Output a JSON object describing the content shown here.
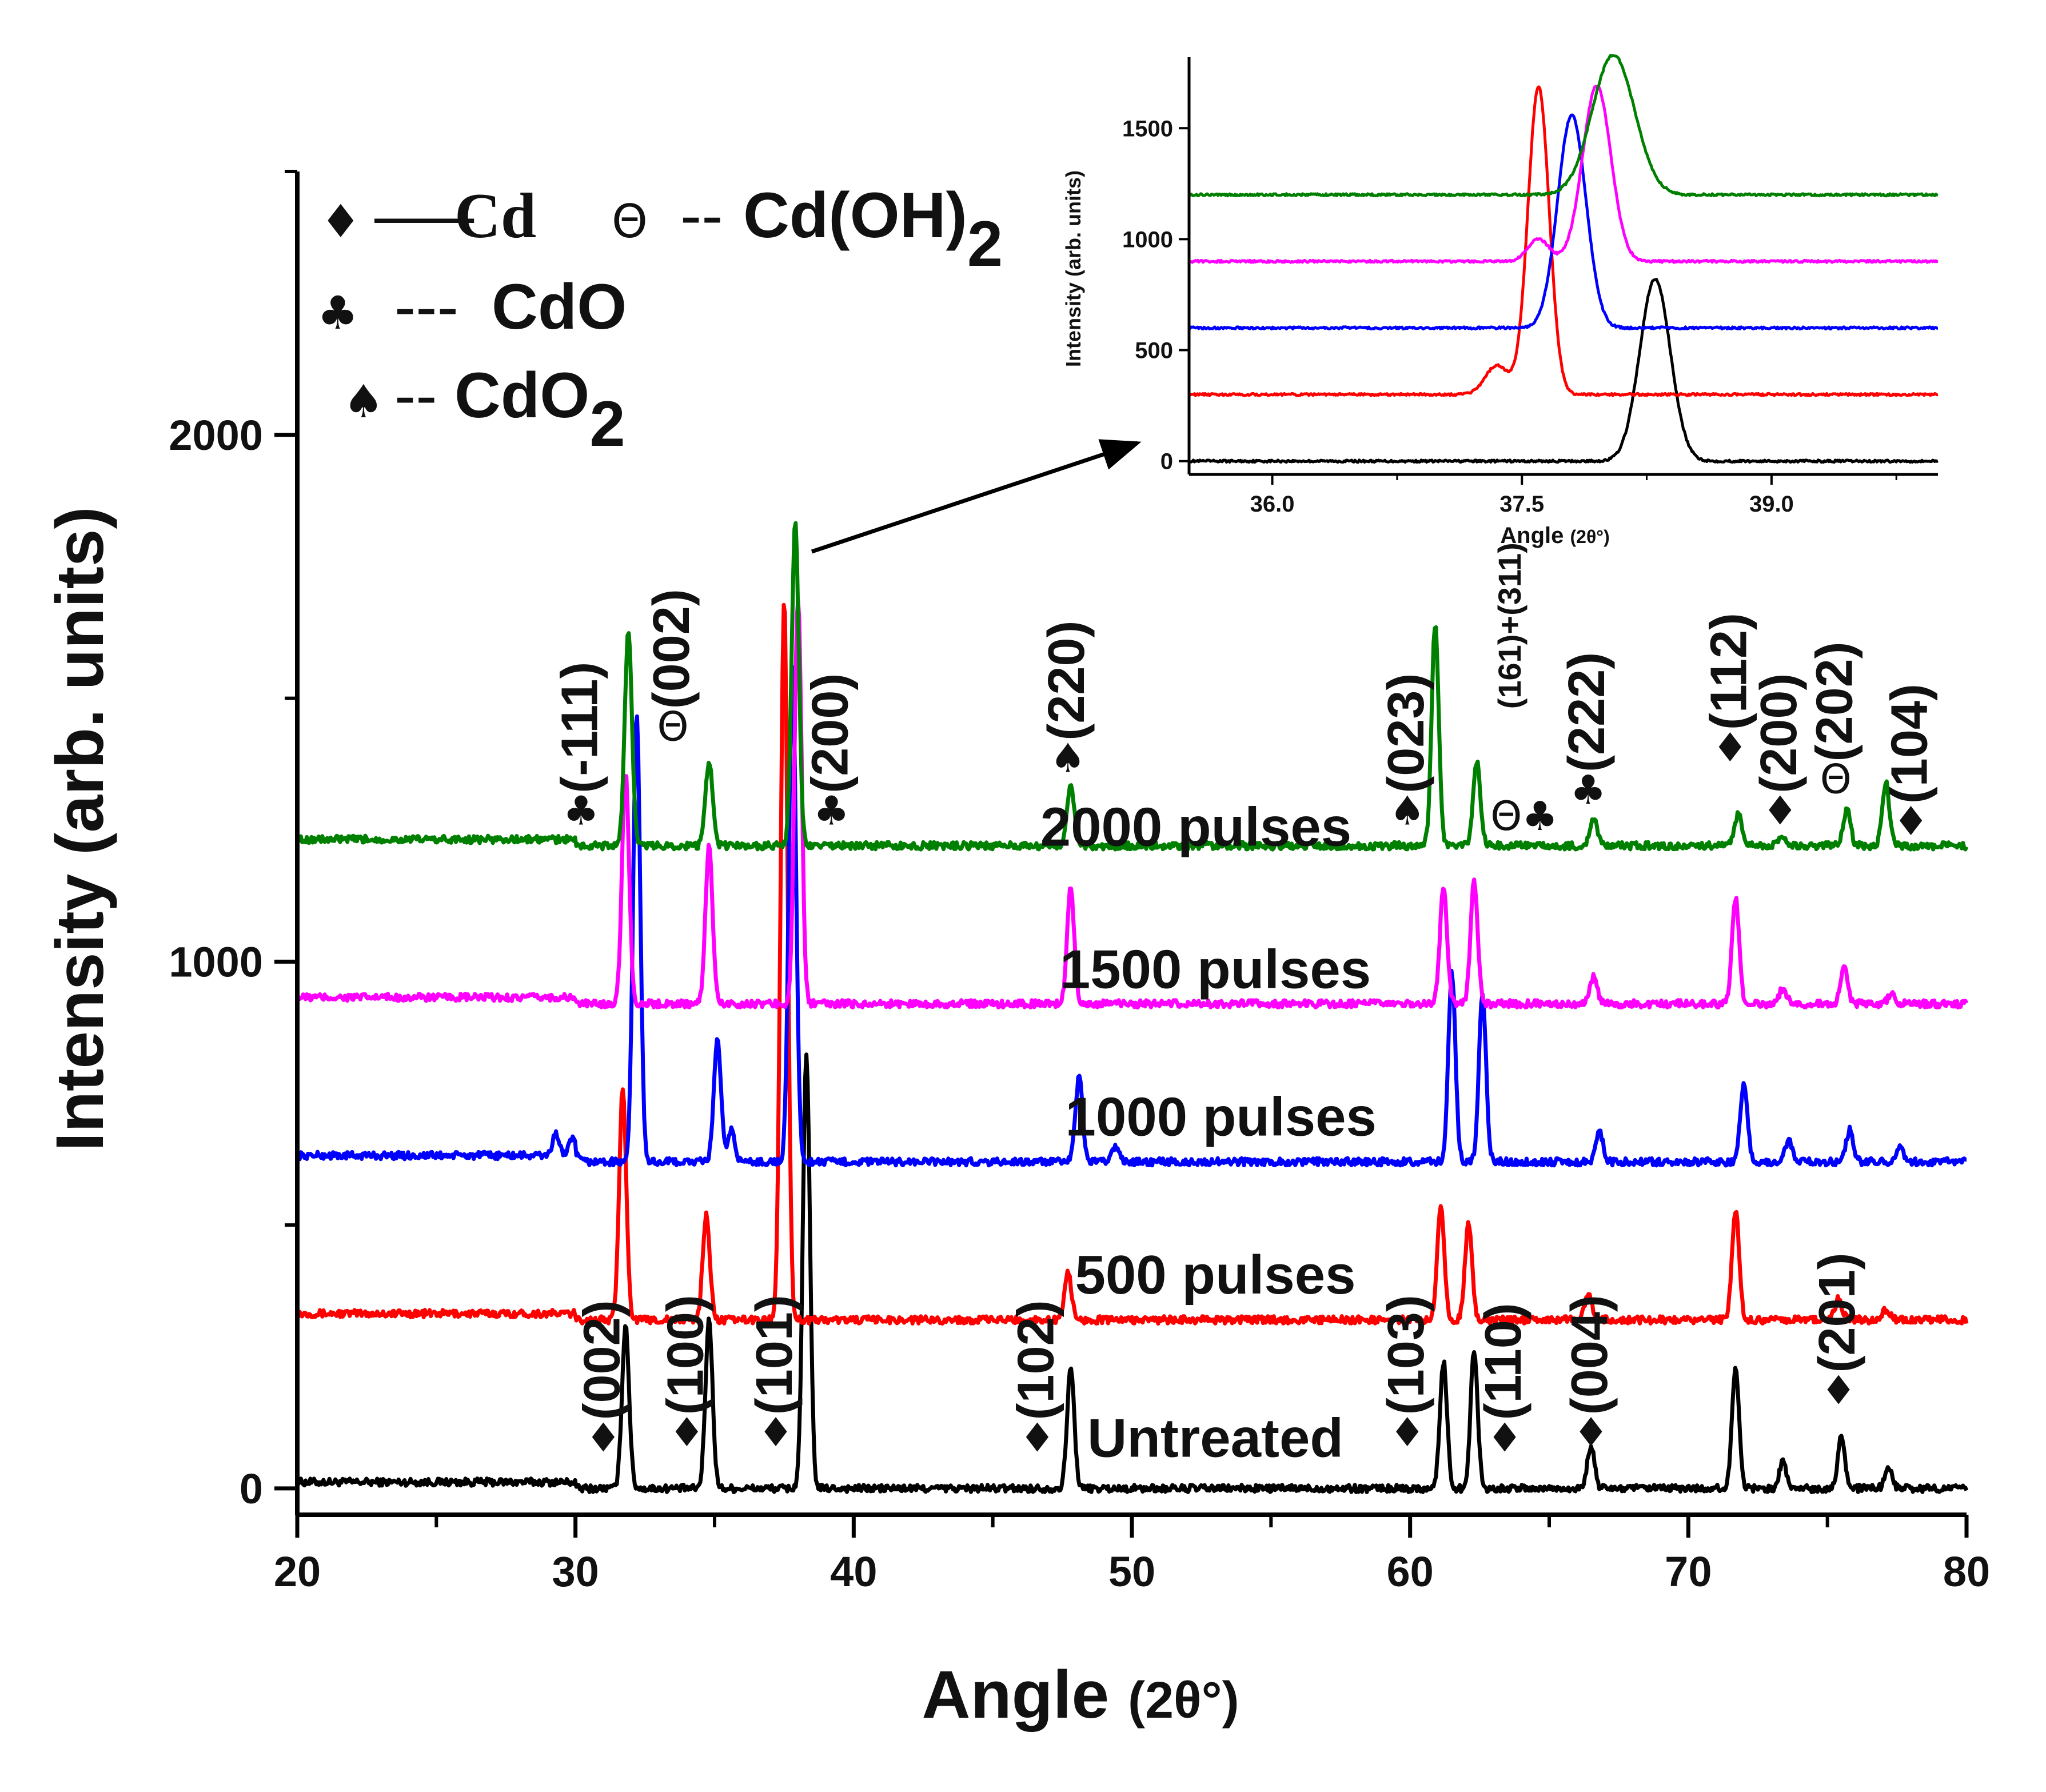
{
  "chart_data": [
    {
      "type": "line",
      "title": "",
      "xlabel": "Angle (2θ°)",
      "xlabel_main": "Angle",
      "xlabel_unit": "(2θ°)",
      "ylabel": "Intensity (arb. units)",
      "xlim": [
        20,
        80
      ],
      "ylim": [
        -50,
        2500
      ],
      "xticks": [
        20,
        30,
        40,
        50,
        60,
        70,
        80
      ],
      "yticks": [
        0,
        1000,
        2000
      ],
      "series": [
        {
          "name": "Untreated",
          "label": "Untreated",
          "color": "#000000",
          "baseline": 0,
          "peaks": [
            [
              31.8,
              310
            ],
            [
              34.8,
              320
            ],
            [
              38.3,
              820
            ],
            [
              47.8,
              230
            ],
            [
              61.2,
              240
            ],
            [
              62.3,
              260
            ],
            [
              66.5,
              80
            ],
            [
              71.7,
              230
            ],
            [
              73.4,
              50
            ],
            [
              75.5,
              100
            ],
            [
              77.2,
              40
            ]
          ]
        },
        {
          "name": "500 pulses",
          "label": "500 pulses",
          "color": "#ff0000",
          "baseline": 320,
          "peaks": [
            [
              31.7,
              760
            ],
            [
              34.7,
              520
            ],
            [
              37.5,
              1690
            ],
            [
              47.7,
              410
            ],
            [
              61.1,
              540
            ],
            [
              62.1,
              500
            ],
            [
              66.4,
              370
            ],
            [
              71.7,
              530
            ],
            [
              75.4,
              360
            ],
            [
              77.1,
              340
            ]
          ]
        },
        {
          "name": "1000 pulses",
          "label": "1000 pulses",
          "color": "#0000ff",
          "baseline": 620,
          "peaks": [
            [
              29.3,
              660
            ],
            [
              29.9,
              650
            ],
            [
              32.2,
              1470
            ],
            [
              35.1,
              850
            ],
            [
              35.6,
              680
            ],
            [
              37.8,
              1560
            ],
            [
              48.1,
              780
            ],
            [
              49.4,
              650
            ],
            [
              61.5,
              980
            ],
            [
              62.6,
              940
            ],
            [
              66.8,
              680
            ],
            [
              72.0,
              770
            ],
            [
              73.6,
              660
            ],
            [
              75.8,
              680
            ],
            [
              77.6,
              650
            ]
          ]
        },
        {
          "name": "1500 pulses",
          "label": "1500 pulses",
          "color": "#ff00ff",
          "baseline": 920,
          "peaks": [
            [
              31.8,
              1360
            ],
            [
              34.8,
              1220
            ],
            [
              38.0,
              1690
            ],
            [
              47.8,
              1140
            ],
            [
              61.2,
              1140
            ],
            [
              62.3,
              1150
            ],
            [
              66.6,
              970
            ],
            [
              71.7,
              1120
            ],
            [
              73.4,
              950
            ],
            [
              75.6,
              990
            ],
            [
              77.3,
              940
            ]
          ]
        },
        {
          "name": "2000 pulses",
          "label": "2000 pulses",
          "color": "#008000",
          "baseline": 1220,
          "peaks": [
            [
              31.9,
              1630
            ],
            [
              34.8,
              1380
            ],
            [
              37.9,
              1830
            ],
            [
              47.8,
              1340
            ],
            [
              60.9,
              1640
            ],
            [
              62.4,
              1380
            ],
            [
              66.6,
              1270
            ],
            [
              71.8,
              1280
            ],
            [
              73.4,
              1240
            ],
            [
              75.7,
              1290
            ],
            [
              77.1,
              1340
            ]
          ]
        }
      ],
      "annotations": [
        {
          "text": "(002)",
          "symbol": "♦",
          "x": 31.0,
          "y": 70
        },
        {
          "text": "(100)",
          "symbol": "♦",
          "x": 34.0,
          "y": 80
        },
        {
          "text": "(101)",
          "symbol": "♦",
          "x": 37.2,
          "y": 80
        },
        {
          "text": "(102)",
          "symbol": "♦",
          "x": 46.6,
          "y": 70
        },
        {
          "text": "(103)",
          "symbol": "♦",
          "x": 59.9,
          "y": 80
        },
        {
          "text": "(110)",
          "symbol": "♦",
          "x": 63.4,
          "y": 70
        },
        {
          "text": "(004)",
          "symbol": "♦",
          "x": 66.5,
          "y": 80
        },
        {
          "text": "(201)",
          "symbol": "♦",
          "x": 75.4,
          "y": 160
        },
        {
          "text": "(-111)",
          "symbol": "♣",
          "x": 30.2,
          "y": 1260
        },
        {
          "text": "(002)",
          "symbol": "Θ",
          "x": 33.5,
          "y": 1420
        },
        {
          "text": "(200)",
          "symbol": "♣",
          "x": 39.2,
          "y": 1260
        },
        {
          "text": "(220)",
          "symbol": "♠",
          "x": 47.7,
          "y": 1360
        },
        {
          "text": "(023)",
          "symbol": "♠",
          "x": 59.9,
          "y": 1260
        },
        {
          "text": "(161)+(311)",
          "symbol": "",
          "x": 63.4,
          "y": 1420
        },
        {
          "text": "",
          "symbol": "Θ♣",
          "x": 64.1,
          "y": 1250
        },
        {
          "text": "(222)",
          "symbol": "♣",
          "x": 66.4,
          "y": 1300
        },
        {
          "text": "(112)",
          "symbol": "♦",
          "x": 71.5,
          "y": 1380
        },
        {
          "text": "(200)",
          "symbol": "♦",
          "x": 73.3,
          "y": 1260
        },
        {
          "text": "(202)",
          "symbol": "Θ",
          "x": 75.3,
          "y": 1320
        },
        {
          "text": "(104)",
          "symbol": "♦",
          "x": 78.0,
          "y": 1240
        }
      ]
    },
    {
      "type": "line",
      "title": "",
      "xlabel": "Angle (2θ°)",
      "xlabel_main": "Angle",
      "xlabel_unit": "(2θ°)",
      "ylabel": "Intensity (arb. units)",
      "xlim": [
        35.5,
        40.0
      ],
      "ylim": [
        -60,
        1820
      ],
      "xticks": [
        36.0,
        37.5,
        39.0
      ],
      "xtick_labels": [
        "36.0",
        "37.5",
        "39.0"
      ],
      "yticks": [
        0,
        500,
        1000,
        1500
      ],
      "series": [
        {
          "name": "Untreated",
          "color": "#000000",
          "baseline": 0,
          "peaks": [
            [
              38.3,
              820,
              0.13
            ]
          ]
        },
        {
          "name": "500 pulses",
          "color": "#ff0000",
          "baseline": 300,
          "peaks": [
            [
              37.35,
              430,
              0.1
            ],
            [
              37.6,
              1690,
              0.09
            ]
          ]
        },
        {
          "name": "1000 pulses",
          "color": "#0000ff",
          "baseline": 600,
          "peaks": [
            [
              37.8,
              1560,
              0.12
            ]
          ]
        },
        {
          "name": "1500 pulses",
          "color": "#ff00ff",
          "baseline": 900,
          "peaks": [
            [
              37.6,
              1000,
              0.09
            ],
            [
              37.95,
              1690,
              0.12
            ]
          ]
        },
        {
          "name": "2000 pulses",
          "color": "#008000",
          "baseline": 1200,
          "peaks": [
            [
              38.05,
              1830,
              0.18
            ]
          ]
        }
      ]
    }
  ],
  "legend": {
    "items": [
      {
        "symbol": "♦",
        "dash": "—–",
        "text": "Cd"
      },
      {
        "symbol": "Θ",
        "dash": "--",
        "text": "Cd(OH)",
        "sub": "2"
      },
      {
        "symbol": "♣",
        "dash": "---",
        "text": "CdO"
      },
      {
        "symbol": "♠",
        "dash": "--",
        "text": "CdO",
        "sub": "2"
      }
    ]
  }
}
